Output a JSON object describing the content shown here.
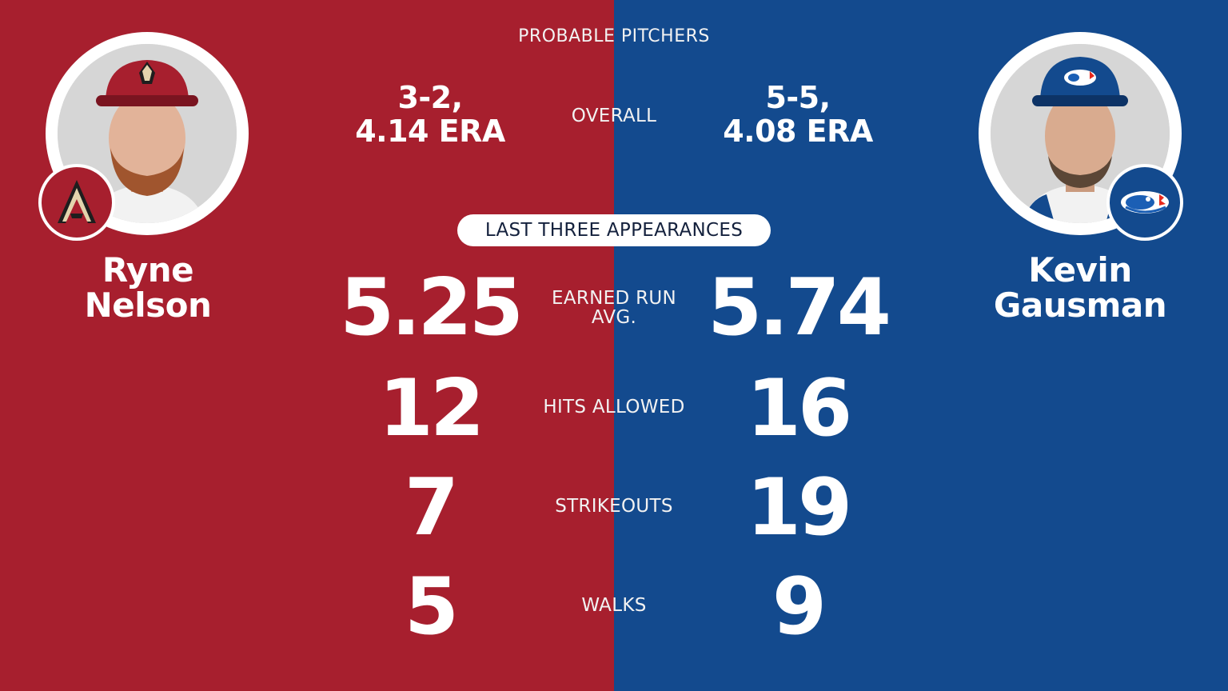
{
  "header": {
    "title": "PROBABLE PITCHERS"
  },
  "section": {
    "last_three": "LAST THREE APPEARANCES"
  },
  "labels": {
    "overall": "OVERALL",
    "era_line1": "EARNED RUN",
    "era_line2": "AVG.",
    "hits": "HITS ALLOWED",
    "strikeouts": "STRIKEOUTS",
    "walks": "WALKS"
  },
  "left": {
    "first_name": "Ryne",
    "last_name": "Nelson",
    "record_line1": "3-2,",
    "record_line2": "4.14 ERA",
    "era": "5.25",
    "hits": "12",
    "strikeouts": "7",
    "walks": "5",
    "team_logo_icon": "diamondbacks-logo-icon",
    "color": "#a71f2e"
  },
  "right": {
    "first_name": "Kevin",
    "last_name": "Gausman",
    "record_line1": "5-5,",
    "record_line2": "4.08 ERA",
    "era": "5.74",
    "hits": "16",
    "strikeouts": "19",
    "walks": "9",
    "team_logo_icon": "blue-jays-logo-icon",
    "color": "#134a8e"
  }
}
